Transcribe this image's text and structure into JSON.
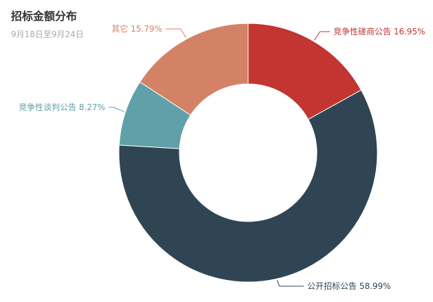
{
  "chart_data": {
    "type": "pie",
    "title": "招标金额分布",
    "subtitle": "9月18日至9月24日",
    "series": [
      {
        "data": [
          {
            "name": "竞争性磋商公告",
            "value": 16.95,
            "label": "竞争性磋商公告 16.95%",
            "color": "#c23531"
          },
          {
            "name": "公开招标公告",
            "value": 58.99,
            "label": "公开招标公告 58.99%",
            "color": "#2f4554"
          },
          {
            "name": "竞争性谈判公告",
            "value": 8.27,
            "label": "竞争性谈判公告 8.27%",
            "color": "#61a0a8"
          },
          {
            "name": "其它",
            "value": 15.79,
            "label": "其它 15.79%",
            "color": "#d48265"
          }
        ]
      }
    ]
  }
}
